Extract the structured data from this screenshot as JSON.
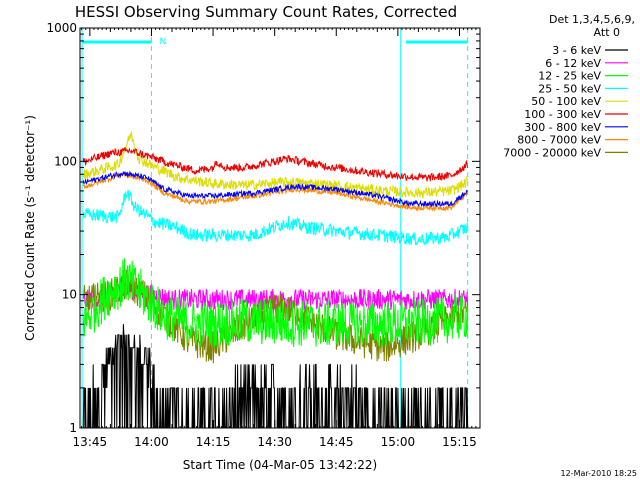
{
  "chart_data": {
    "type": "line",
    "title": "HESSI Observing Summary Count Rates, Corrected",
    "xlabel": "Start Time (04-Mar-05 13:42:22)",
    "ylabel": "Corrected Count Rate (s⁻¹ detector⁻¹)",
    "y_scale": "log",
    "ylim": [
      1,
      1000
    ],
    "xlim_minutes": [
      -2.4,
      95
    ],
    "x_ticks": [
      {
        "m": 0,
        "label": "13:45"
      },
      {
        "m": 15,
        "label": "14:00"
      },
      {
        "m": 30,
        "label": "14:15"
      },
      {
        "m": 45,
        "label": "14:30"
      },
      {
        "m": 60,
        "label": "14:45"
      },
      {
        "m": 75,
        "label": "15:00"
      },
      {
        "m": 90,
        "label": "15:15"
      }
    ],
    "y_ticks": [
      {
        "v": 1,
        "label": "1"
      },
      {
        "v": 10,
        "label": "10"
      },
      {
        "v": 100,
        "label": "100"
      },
      {
        "v": 1000,
        "label": "1000"
      }
    ],
    "legend": {
      "header1": "Det 1,3,4,5,6,9,",
      "header2": "Att 0",
      "placement": "top-right outside"
    },
    "night_flag": {
      "label": "N",
      "start": 15.0,
      "end": 77.0
    },
    "day_intervals": [
      [
        -2.0,
        15.0
      ],
      [
        77.0,
        92.0
      ]
    ],
    "vertical_lines": [
      -1.9,
      15.0,
      75.7,
      92.0
    ],
    "series": [
      {
        "name": "3 - 6 keV",
        "color": "#000000",
        "pts": [
          [
            -1,
            1.3
          ],
          [
            5,
            3.5
          ],
          [
            8,
            5
          ],
          [
            11,
            4
          ],
          [
            15,
            3
          ],
          [
            17,
            1
          ],
          [
            25,
            1.5
          ],
          [
            30,
            1.5
          ],
          [
            40,
            2
          ],
          [
            50,
            2
          ],
          [
            60,
            2
          ],
          [
            70,
            1.5
          ],
          [
            80,
            1.5
          ],
          [
            92,
            1.5
          ]
        ],
        "noise": 0.5
      },
      {
        "name": "6 - 12 keV",
        "color": "#ff00ff",
        "pts": [
          [
            -1,
            9
          ],
          [
            5,
            10
          ],
          [
            10,
            11
          ],
          [
            15,
            10
          ],
          [
            20,
            9.2
          ],
          [
            40,
            9.2
          ],
          [
            60,
            9.2
          ],
          [
            80,
            9.2
          ],
          [
            92,
            9.2
          ]
        ],
        "noise": 0.08
      },
      {
        "name": "12 - 25 keV",
        "color": "#00ff00",
        "pts": [
          [
            -1,
            6.5
          ],
          [
            4,
            10
          ],
          [
            9,
            13
          ],
          [
            13,
            10
          ],
          [
            18,
            7
          ],
          [
            25,
            6
          ],
          [
            40,
            6.3
          ],
          [
            55,
            6
          ],
          [
            70,
            6
          ],
          [
            85,
            6.3
          ],
          [
            92,
            7
          ]
        ],
        "noise": 0.18
      },
      {
        "name": "25 - 50 keV",
        "color": "#00ffff",
        "pts": [
          [
            -1,
            40
          ],
          [
            7,
            38
          ],
          [
            9,
            60
          ],
          [
            11,
            45
          ],
          [
            16,
            35
          ],
          [
            21,
            32
          ],
          [
            25,
            28
          ],
          [
            40,
            28
          ],
          [
            48,
            35
          ],
          [
            53,
            32
          ],
          [
            60,
            30
          ],
          [
            70,
            28
          ],
          [
            80,
            26
          ],
          [
            87,
            27
          ],
          [
            92,
            32
          ]
        ],
        "noise": 0.05
      },
      {
        "name": "50 - 100 keV",
        "color": "#dddd00",
        "pts": [
          [
            -1,
            80
          ],
          [
            7,
            95
          ],
          [
            10,
            160
          ],
          [
            12,
            105
          ],
          [
            16,
            90
          ],
          [
            22,
            75
          ],
          [
            30,
            68
          ],
          [
            38,
            66
          ],
          [
            48,
            70
          ],
          [
            55,
            68
          ],
          [
            65,
            63
          ],
          [
            72,
            60
          ],
          [
            80,
            58
          ],
          [
            88,
            60
          ],
          [
            92,
            70
          ]
        ],
        "noise": 0.04
      },
      {
        "name": "100 - 300 keV",
        "color": "#ee0000",
        "pts": [
          [
            -1,
            100
          ],
          [
            5,
            115
          ],
          [
            10,
            120
          ],
          [
            14,
            110
          ],
          [
            20,
            95
          ],
          [
            26,
            85
          ],
          [
            30,
            90
          ],
          [
            31,
            100
          ],
          [
            33,
            90
          ],
          [
            38,
            90
          ],
          [
            48,
            105
          ],
          [
            55,
            95
          ],
          [
            65,
            85
          ],
          [
            75,
            78
          ],
          [
            82,
            75
          ],
          [
            88,
            78
          ],
          [
            92,
            95
          ]
        ],
        "noise": 0.03
      },
      {
        "name": "300 - 800 keV",
        "color": "#0000ff",
        "pts": [
          [
            -1,
            70
          ],
          [
            8,
            82
          ],
          [
            14,
            75
          ],
          [
            18,
            62
          ],
          [
            24,
            55
          ],
          [
            30,
            55
          ],
          [
            40,
            58
          ],
          [
            50,
            65
          ],
          [
            60,
            62
          ],
          [
            70,
            55
          ],
          [
            78,
            48
          ],
          [
            88,
            48
          ],
          [
            92,
            60
          ]
        ],
        "noise": 0.02
      },
      {
        "name": "800 - 7000 keV",
        "color": "#ff8800",
        "pts": [
          [
            -1,
            65
          ],
          [
            8,
            80
          ],
          [
            14,
            72
          ],
          [
            18,
            58
          ],
          [
            24,
            50
          ],
          [
            30,
            50
          ],
          [
            40,
            55
          ],
          [
            50,
            62
          ],
          [
            60,
            58
          ],
          [
            70,
            50
          ],
          [
            78,
            45
          ],
          [
            88,
            45
          ],
          [
            92,
            58
          ]
        ],
        "noise": 0.02
      },
      {
        "name": "7000 - 20000 keV",
        "color": "#808000",
        "pts": [
          [
            -1,
            9
          ],
          [
            5,
            10
          ],
          [
            9,
            12
          ],
          [
            13,
            10
          ],
          [
            18,
            7
          ],
          [
            24,
            4.5
          ],
          [
            30,
            4
          ],
          [
            38,
            6
          ],
          [
            45,
            8
          ],
          [
            50,
            7.5
          ],
          [
            55,
            6
          ],
          [
            60,
            5
          ],
          [
            65,
            4.5
          ],
          [
            72,
            4
          ],
          [
            80,
            5
          ],
          [
            85,
            6
          ],
          [
            92,
            7.5
          ]
        ],
        "noise": 0.12
      }
    ]
  },
  "footer": {
    "timestamp": "12-Mar-2010 18:25"
  }
}
